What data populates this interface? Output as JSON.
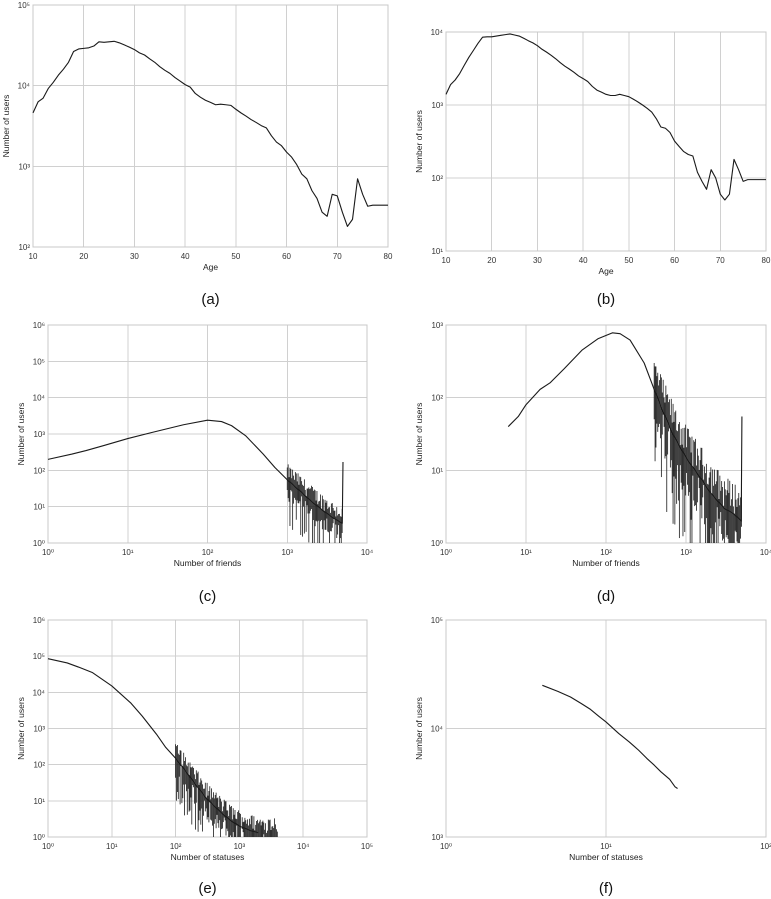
{
  "figure": {
    "captions": [
      "(a)",
      "(b)",
      "(c)",
      "(d)",
      "(e)",
      "(f)"
    ]
  },
  "chart_data": [
    {
      "panel": "(a)",
      "type": "line",
      "xlabel": "Age",
      "ylabel": "Number of users",
      "xlim": [
        10,
        80
      ],
      "ylim": [
        100,
        100000
      ],
      "yscale": "log",
      "grid": true,
      "x_ticks": [
        "10",
        "20",
        "30",
        "40",
        "50",
        "60",
        "70",
        "80"
      ],
      "y_ticks": [
        "10²",
        "10³",
        "10⁴",
        "10⁵"
      ],
      "x": [
        10,
        11,
        12,
        13,
        14,
        15,
        16,
        17,
        18,
        19,
        20,
        21,
        22,
        23,
        24,
        25,
        26,
        27,
        28,
        29,
        30,
        31,
        32,
        33,
        34,
        35,
        36,
        37,
        38,
        39,
        40,
        41,
        42,
        43,
        44,
        45,
        46,
        47,
        48,
        49,
        50,
        51,
        52,
        53,
        54,
        55,
        56,
        57,
        58,
        59,
        60,
        61,
        62,
        63,
        64,
        65,
        66,
        67,
        68,
        69,
        70,
        71,
        72,
        73,
        74,
        75,
        76,
        77,
        78,
        79,
        80
      ],
      "y": [
        4600,
        6300,
        7000,
        9200,
        11000,
        13500,
        16000,
        19500,
        26500,
        28500,
        29000,
        29500,
        31000,
        35000,
        34500,
        35000,
        35500,
        34000,
        32000,
        30000,
        28000,
        25500,
        24000,
        21500,
        19500,
        17200,
        15500,
        14200,
        12600,
        11400,
        10300,
        9600,
        8000,
        7200,
        6600,
        6200,
        5800,
        5900,
        5800,
        5700,
        5100,
        4600,
        4200,
        3800,
        3500,
        3200,
        3000,
        2400,
        2000,
        1800,
        1500,
        1300,
        1050,
        800,
        700,
        500,
        400,
        270,
        240,
        450,
        430,
        270,
        180,
        220,
        700,
        450,
        320,
        330,
        330,
        330,
        330
      ]
    },
    {
      "panel": "(b)",
      "type": "line",
      "xlabel": "Age",
      "ylabel": "Number of users",
      "xlim": [
        10,
        80
      ],
      "ylim": [
        10,
        10000
      ],
      "yscale": "log",
      "grid": true,
      "x_ticks": [
        "10",
        "20",
        "30",
        "40",
        "50",
        "60",
        "70",
        "80"
      ],
      "y_ticks": [
        "10¹",
        "10²",
        "10³",
        "10⁴"
      ],
      "x": [
        10,
        11,
        12,
        13,
        14,
        15,
        16,
        17,
        18,
        19,
        20,
        21,
        22,
        23,
        24,
        25,
        26,
        27,
        28,
        29,
        30,
        31,
        32,
        33,
        34,
        35,
        36,
        37,
        38,
        39,
        40,
        41,
        42,
        43,
        44,
        45,
        46,
        47,
        48,
        49,
        50,
        51,
        52,
        53,
        54,
        55,
        56,
        57,
        58,
        59,
        60,
        61,
        62,
        63,
        64,
        65,
        66,
        67,
        68,
        69,
        70,
        71,
        72,
        73,
        74,
        75,
        76,
        77,
        78,
        79,
        80
      ],
      "y": [
        1400,
        1900,
        2200,
        2700,
        3500,
        4500,
        5600,
        7000,
        8500,
        8600,
        8600,
        8800,
        9000,
        9200,
        9400,
        9100,
        8800,
        8200,
        7600,
        7100,
        6500,
        5800,
        5300,
        4800,
        4300,
        3800,
        3400,
        3100,
        2800,
        2500,
        2300,
        2100,
        1800,
        1600,
        1500,
        1400,
        1350,
        1350,
        1400,
        1350,
        1300,
        1200,
        1100,
        1000,
        900,
        800,
        650,
        500,
        480,
        420,
        320,
        270,
        230,
        210,
        200,
        120,
        90,
        70,
        130,
        100,
        60,
        50,
        60,
        180,
        130,
        90,
        95,
        95,
        95,
        95,
        95
      ]
    },
    {
      "panel": "(c)",
      "type": "line",
      "xlabel": "Number of friends",
      "ylabel": "Number of users",
      "xscale": "log",
      "yscale": "log",
      "xlim": [
        1,
        10000
      ],
      "ylim": [
        1,
        1000000
      ],
      "grid": true,
      "x_ticks": [
        "10⁰",
        "10¹",
        "10²",
        "10³",
        "10⁴"
      ],
      "y_ticks": [
        "10⁰",
        "10¹",
        "10²",
        "10³",
        "10⁴",
        "10⁵",
        "10⁶"
      ],
      "x": [
        1,
        2,
        3,
        5,
        10,
        20,
        50,
        100,
        150,
        200,
        300,
        500,
        700,
        1000,
        1500,
        2000,
        3000,
        4000,
        4900,
        5000
      ],
      "y": [
        200,
        280,
        350,
        480,
        750,
        1100,
        1800,
        2400,
        2200,
        1700,
        900,
        280,
        120,
        55,
        25,
        14,
        7,
        4.5,
        3.5,
        170
      ],
      "noise_from": 1000,
      "noise_to": 5000
    },
    {
      "panel": "(d)",
      "type": "line",
      "xlabel": "Number of friends",
      "ylabel": "Number of users",
      "xscale": "log",
      "yscale": "log",
      "xlim": [
        1,
        10000
      ],
      "ylim": [
        1,
        1000
      ],
      "grid": true,
      "x_ticks": [
        "10⁰",
        "10¹",
        "10²",
        "10³",
        "10⁴"
      ],
      "y_ticks": [
        "10⁰",
        "10¹",
        "10²",
        "10³"
      ],
      "x": [
        6,
        8,
        10,
        15,
        20,
        30,
        50,
        80,
        120,
        150,
        200,
        300,
        400,
        500,
        700,
        1000,
        1500,
        2000,
        3000,
        4000,
        4900,
        5000
      ],
      "y": [
        40,
        55,
        80,
        130,
        160,
        250,
        450,
        650,
        780,
        760,
        620,
        300,
        130,
        70,
        30,
        15,
        8,
        5,
        3,
        2.5,
        2,
        55
      ],
      "noise_from": 400,
      "noise_to": 5000
    },
    {
      "panel": "(e)",
      "type": "line",
      "xlabel": "Number of statuses",
      "ylabel": "Number of users",
      "xscale": "log",
      "yscale": "log",
      "xlim": [
        1,
        100000
      ],
      "ylim": [
        1,
        1000000
      ],
      "grid": true,
      "x_ticks": [
        "10⁰",
        "10¹",
        "10²",
        "10³",
        "10⁴",
        "10⁵"
      ],
      "y_ticks": [
        "10⁰",
        "10¹",
        "10²",
        "10³",
        "10⁴",
        "10⁵",
        "10⁶"
      ],
      "x": [
        1,
        2,
        3,
        5,
        10,
        20,
        30,
        50,
        70,
        100,
        150,
        200,
        300,
        500,
        700,
        1000,
        1500,
        2000
      ],
      "y": [
        85000,
        65000,
        50000,
        35000,
        15000,
        5000,
        2200,
        700,
        300,
        150,
        60,
        30,
        12,
        5,
        3,
        2,
        1.5,
        1.3
      ],
      "noise_from": 100,
      "noise_to": 4000
    },
    {
      "panel": "(f)",
      "type": "line",
      "xlabel": "Number of statuses",
      "ylabel": "Number of users",
      "xscale": "log",
      "yscale": "log",
      "xlim": [
        1,
        100
      ],
      "ylim": [
        1000,
        100000
      ],
      "grid": true,
      "x_ticks": [
        "10⁰",
        "10¹",
        "10²"
      ],
      "y_ticks": [
        "10³",
        "10⁴",
        "10⁵"
      ],
      "x": [
        4,
        5,
        6,
        7,
        8,
        9,
        10,
        12,
        14,
        16,
        18,
        20,
        22,
        25,
        27,
        28
      ],
      "y": [
        25000,
        22000,
        19500,
        17000,
        15000,
        13000,
        11500,
        9000,
        7500,
        6300,
        5300,
        4600,
        4000,
        3400,
        2900,
        2800
      ]
    }
  ]
}
